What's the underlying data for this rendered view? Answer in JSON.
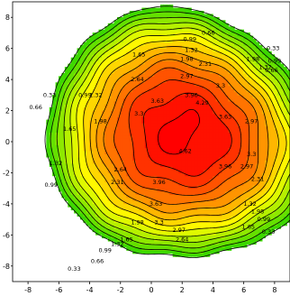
{
  "chart_data": {
    "type": "contour",
    "title": "",
    "xlabel": "",
    "ylabel": "",
    "xlim": [
      -9,
      9
    ],
    "ylim": [
      -9,
      9
    ],
    "x_ticks": [
      "-8",
      "-6",
      "-4",
      "-2",
      "0",
      "2",
      "4",
      "6",
      "8"
    ],
    "y_ticks": [
      "-8",
      "-6",
      "-4",
      "-2",
      "0",
      "2",
      "4",
      "6",
      "8"
    ],
    "grid": false,
    "peak": {
      "x": 2.2,
      "y": 0.5
    },
    "max_level": 4.62,
    "contour_levels": [
      0.33,
      0.66,
      0.99,
      1.32,
      1.65,
      1.98,
      2.31,
      2.64,
      2.97,
      3.3,
      3.63,
      3.96,
      4.29,
      4.62
    ],
    "contour_labels": [
      {
        "text": "0.66",
        "x": 3.7,
        "y": 7.0
      },
      {
        "text": "0.99",
        "x": 2.5,
        "y": 6.6
      },
      {
        "text": "1.32",
        "x": 2.6,
        "y": 5.9
      },
      {
        "text": "1.65",
        "x": -0.8,
        "y": 5.6
      },
      {
        "text": "1.98",
        "x": 2.3,
        "y": 5.3
      },
      {
        "text": "2.31",
        "x": 3.5,
        "y": 5.0
      },
      {
        "text": "2.64",
        "x": -0.9,
        "y": 4.0
      },
      {
        "text": "2.97",
        "x": 2.3,
        "y": 4.2
      },
      {
        "text": "3.3",
        "x": 4.5,
        "y": 3.6
      },
      {
        "text": "3.63",
        "x": 0.4,
        "y": 2.6
      },
      {
        "text": "3.96",
        "x": 2.6,
        "y": 3.0
      },
      {
        "text": "4.29",
        "x": 3.3,
        "y": 2.5
      },
      {
        "text": "3.63",
        "x": 4.8,
        "y": 1.6
      },
      {
        "text": "2.97",
        "x": 6.5,
        "y": 1.3
      },
      {
        "text": "1.98",
        "x": -3.3,
        "y": 1.3
      },
      {
        "text": "1.65",
        "x": -5.3,
        "y": 0.8
      },
      {
        "text": "1.32",
        "x": -3.6,
        "y": 3.0
      },
      {
        "text": "0.99",
        "x": -4.3,
        "y": 3.0
      },
      {
        "text": "0.33",
        "x": -6.6,
        "y": 3.0
      },
      {
        "text": "0.66",
        "x": -7.5,
        "y": 2.2
      },
      {
        "text": "1.32",
        "x": -6.2,
        "y": -1.4
      },
      {
        "text": "0.99",
        "x": -6.5,
        "y": -2.8
      },
      {
        "text": "2.64",
        "x": -2.0,
        "y": -1.8
      },
      {
        "text": "2.31",
        "x": -2.2,
        "y": -2.6
      },
      {
        "text": "3.3",
        "x": -0.8,
        "y": 1.8
      },
      {
        "text": "3.96",
        "x": 0.5,
        "y": -2.6
      },
      {
        "text": "4.62",
        "x": 2.2,
        "y": -0.6
      },
      {
        "text": "3.63",
        "x": 0.3,
        "y": -4.0
      },
      {
        "text": "3.3",
        "x": 0.5,
        "y": -5.2
      },
      {
        "text": "2.97",
        "x": 1.8,
        "y": -5.7
      },
      {
        "text": "2.64",
        "x": 2.0,
        "y": -6.3
      },
      {
        "text": "3.96",
        "x": 4.8,
        "y": -1.6
      },
      {
        "text": "2.97",
        "x": 6.2,
        "y": -1.6
      },
      {
        "text": "3.3",
        "x": 6.5,
        "y": -0.8
      },
      {
        "text": "2.31",
        "x": 6.9,
        "y": -2.4
      },
      {
        "text": "1.98",
        "x": 6.9,
        "y": -4.5
      },
      {
        "text": "1.32",
        "x": 6.4,
        "y": -4.0
      },
      {
        "text": "1.65",
        "x": 6.3,
        "y": -5.5
      },
      {
        "text": "0.99",
        "x": 7.3,
        "y": -5.0
      },
      {
        "text": "1.98",
        "x": -0.9,
        "y": -5.2
      },
      {
        "text": "1.65",
        "x": -1.6,
        "y": -6.3
      },
      {
        "text": "1.32",
        "x": -2.2,
        "y": -6.6
      },
      {
        "text": "0.99",
        "x": -3.0,
        "y": -7.0
      },
      {
        "text": "0.66",
        "x": -3.5,
        "y": -7.7
      },
      {
        "text": "0.33",
        "x": -5.0,
        "y": -8.2
      },
      {
        "text": "0.99",
        "x": 8.0,
        "y": 5.2
      },
      {
        "text": "1.32",
        "x": 7.4,
        "y": 4.8
      },
      {
        "text": "0.66",
        "x": 7.8,
        "y": 4.6
      },
      {
        "text": "1.98",
        "x": 6.6,
        "y": 5.3
      },
      {
        "text": "0.33",
        "x": 7.9,
        "y": 6.0
      },
      {
        "text": "0.33",
        "x": 7.6,
        "y": -5.8
      }
    ],
    "colors": {
      "low": "#00cc00",
      "mid": "#ffff00",
      "high": "#ff0000",
      "background": "#ffffff",
      "line": "#000000"
    }
  }
}
